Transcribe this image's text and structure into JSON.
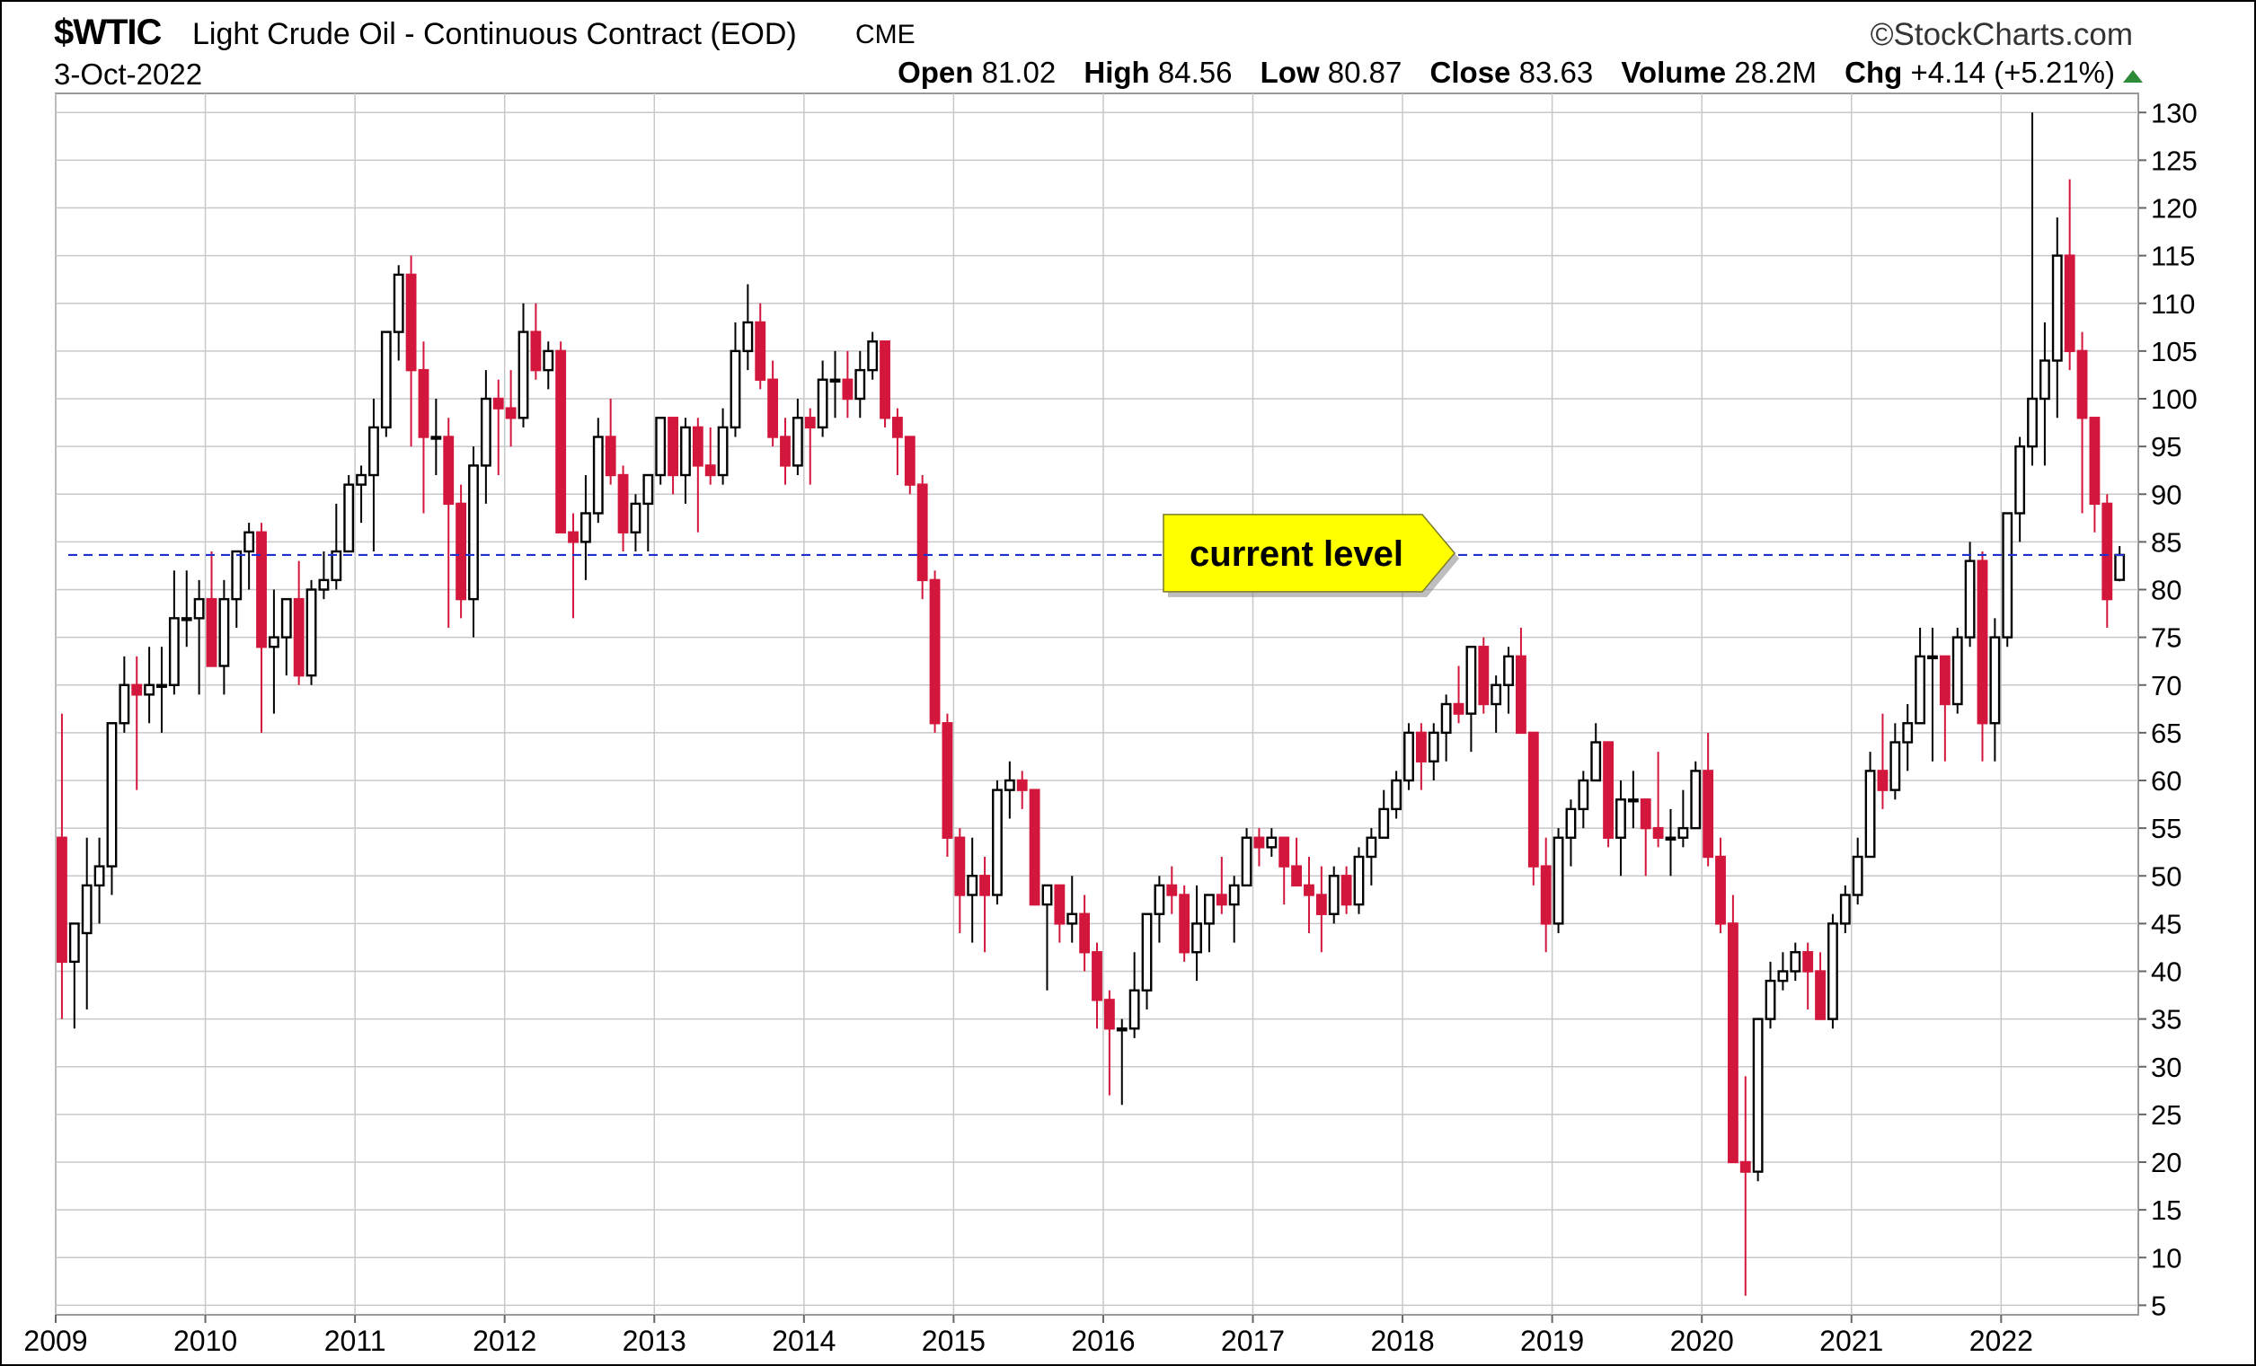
{
  "header": {
    "symbol": "$WTIC",
    "name": "Light Crude Oil - Continuous Contract (EOD)",
    "exchange": "CME",
    "date": "3-Oct-2022",
    "brand": "©StockCharts.com",
    "open_label": "Open",
    "open": "81.02",
    "high_label": "High",
    "high": "84.56",
    "low_label": "Low",
    "low": "80.87",
    "close_label": "Close",
    "close": "83.63",
    "volume_label": "Volume",
    "volume": "28.2M",
    "chg_label": "Chg",
    "chg": "+4.14 (+5.21%)"
  },
  "colors": {
    "up_fill": "#ffffff",
    "up_border": "#000000",
    "down_fill": "#d3173c",
    "grid": "#c8c8c8",
    "current_line": "#1f2fd0",
    "callout_fill": "#ffff00",
    "change_arrow": "#2e8b3a"
  },
  "chart_data": {
    "type": "candlestick",
    "frequency": "monthly",
    "xlim": [
      "2008-12",
      "2022-11"
    ],
    "ylim": [
      4,
      132
    ],
    "ytick_values": [
      5,
      10,
      15,
      20,
      25,
      30,
      35,
      40,
      45,
      50,
      55,
      60,
      65,
      70,
      75,
      80,
      85,
      90,
      95,
      100,
      105,
      110,
      115,
      120,
      125,
      130
    ],
    "xtick_labels": [
      "2009",
      "2010",
      "2011",
      "2012",
      "2013",
      "2014",
      "2015",
      "2016",
      "2017",
      "2018",
      "2019",
      "2020",
      "2021",
      "2022"
    ],
    "reference_line": {
      "value": 83.63,
      "style": "dashed",
      "label": "current level"
    },
    "candles": [
      [
        "2009-01",
        54,
        67,
        35,
        41
      ],
      [
        "2009-02",
        41,
        45,
        34,
        45
      ],
      [
        "2009-03",
        44,
        54,
        36,
        49
      ],
      [
        "2009-04",
        49,
        54,
        45,
        51
      ],
      [
        "2009-05",
        51,
        66,
        48,
        66
      ],
      [
        "2009-06",
        66,
        73,
        65,
        70
      ],
      [
        "2009-07",
        70,
        73,
        59,
        69
      ],
      [
        "2009-08",
        69,
        74,
        66,
        70
      ],
      [
        "2009-09",
        70,
        74,
        65,
        70
      ],
      [
        "2009-10",
        70,
        82,
        69,
        77
      ],
      [
        "2009-11",
        77,
        82,
        74,
        77
      ],
      [
        "2009-12",
        77,
        81,
        69,
        79
      ],
      [
        "2010-01",
        79,
        84,
        72,
        72
      ],
      [
        "2010-02",
        72,
        81,
        69,
        79
      ],
      [
        "2010-03",
        79,
        83,
        76,
        84
      ],
      [
        "2010-04",
        84,
        87,
        80,
        86
      ],
      [
        "2010-05",
        86,
        87,
        65,
        74
      ],
      [
        "2010-06",
        74,
        80,
        67,
        75
      ],
      [
        "2010-07",
        75,
        79,
        71,
        79
      ],
      [
        "2010-08",
        79,
        83,
        70,
        71
      ],
      [
        "2010-09",
        71,
        81,
        70,
        80
      ],
      [
        "2010-10",
        80,
        84,
        79,
        81
      ],
      [
        "2010-11",
        81,
        89,
        80,
        84
      ],
      [
        "2010-12",
        84,
        92,
        84,
        91
      ],
      [
        "2011-01",
        91,
        93,
        87,
        92
      ],
      [
        "2011-02",
        92,
        100,
        84,
        97
      ],
      [
        "2011-03",
        97,
        107,
        96,
        107
      ],
      [
        "2011-04",
        107,
        114,
        104,
        113
      ],
      [
        "2011-05",
        113,
        115,
        95,
        103
      ],
      [
        "2011-06",
        103,
        106,
        88,
        96
      ],
      [
        "2011-07",
        96,
        100,
        92,
        96
      ],
      [
        "2011-08",
        96,
        98,
        76,
        89
      ],
      [
        "2011-09",
        89,
        91,
        77,
        79
      ],
      [
        "2011-10",
        79,
        95,
        75,
        93
      ],
      [
        "2011-11",
        93,
        103,
        89,
        100
      ],
      [
        "2011-12",
        100,
        102,
        92,
        99
      ],
      [
        "2012-01",
        99,
        103,
        95,
        98
      ],
      [
        "2012-02",
        98,
        110,
        97,
        107
      ],
      [
        "2012-03",
        107,
        110,
        102,
        103
      ],
      [
        "2012-04",
        103,
        106,
        101,
        105
      ],
      [
        "2012-05",
        105,
        106,
        86,
        86
      ],
      [
        "2012-06",
        86,
        88,
        77,
        85
      ],
      [
        "2012-07",
        85,
        92,
        81,
        88
      ],
      [
        "2012-08",
        88,
        98,
        87,
        96
      ],
      [
        "2012-09",
        96,
        100,
        91,
        92
      ],
      [
        "2012-10",
        92,
        93,
        84,
        86
      ],
      [
        "2012-11",
        86,
        90,
        84,
        89
      ],
      [
        "2012-12",
        89,
        92,
        84,
        92
      ],
      [
        "2013-01",
        92,
        98,
        91,
        98
      ],
      [
        "2013-02",
        98,
        98,
        90,
        92
      ],
      [
        "2013-03",
        92,
        98,
        89,
        97
      ],
      [
        "2013-04",
        97,
        98,
        86,
        93
      ],
      [
        "2013-05",
        93,
        97,
        91,
        92
      ],
      [
        "2013-06",
        92,
        99,
        91,
        97
      ],
      [
        "2013-07",
        97,
        108,
        96,
        105
      ],
      [
        "2013-08",
        105,
        112,
        103,
        108
      ],
      [
        "2013-09",
        108,
        110,
        101,
        102
      ],
      [
        "2013-10",
        102,
        104,
        95,
        96
      ],
      [
        "2013-11",
        96,
        98,
        91,
        93
      ],
      [
        "2013-12",
        93,
        100,
        92,
        98
      ],
      [
        "2014-01",
        98,
        99,
        91,
        97
      ],
      [
        "2014-02",
        97,
        104,
        96,
        102
      ],
      [
        "2014-03",
        102,
        105,
        98,
        102
      ],
      [
        "2014-04",
        102,
        105,
        98,
        100
      ],
      [
        "2014-05",
        100,
        105,
        98,
        103
      ],
      [
        "2014-06",
        103,
        107,
        102,
        106
      ],
      [
        "2014-07",
        106,
        106,
        97,
        98
      ],
      [
        "2014-08",
        98,
        99,
        92,
        96
      ],
      [
        "2014-09",
        96,
        96,
        90,
        91
      ],
      [
        "2014-10",
        91,
        92,
        79,
        81
      ],
      [
        "2014-11",
        81,
        82,
        65,
        66
      ],
      [
        "2014-12",
        66,
        67,
        52,
        54
      ],
      [
        "2015-01",
        54,
        55,
        44,
        48
      ],
      [
        "2015-02",
        48,
        54,
        43,
        50
      ],
      [
        "2015-03",
        50,
        52,
        42,
        48
      ],
      [
        "2015-04",
        48,
        60,
        47,
        59
      ],
      [
        "2015-05",
        59,
        62,
        56,
        60
      ],
      [
        "2015-06",
        60,
        61,
        57,
        59
      ],
      [
        "2015-07",
        59,
        59,
        47,
        47
      ],
      [
        "2015-08",
        47,
        49,
        38,
        49
      ],
      [
        "2015-09",
        49,
        49,
        43,
        45
      ],
      [
        "2015-10",
        45,
        50,
        43,
        46
      ],
      [
        "2015-11",
        46,
        48,
        40,
        42
      ],
      [
        "2015-12",
        42,
        43,
        34,
        37
      ],
      [
        "2016-01",
        37,
        38,
        27,
        34
      ],
      [
        "2016-02",
        34,
        35,
        26,
        34
      ],
      [
        "2016-03",
        34,
        42,
        33,
        38
      ],
      [
        "2016-04",
        38,
        46,
        36,
        46
      ],
      [
        "2016-05",
        46,
        50,
        43,
        49
      ],
      [
        "2016-06",
        49,
        51,
        46,
        48
      ],
      [
        "2016-07",
        48,
        49,
        41,
        42
      ],
      [
        "2016-08",
        42,
        49,
        39,
        45
      ],
      [
        "2016-09",
        45,
        48,
        42,
        48
      ],
      [
        "2016-10",
        48,
        52,
        46,
        47
      ],
      [
        "2016-11",
        47,
        50,
        43,
        49
      ],
      [
        "2016-12",
        49,
        55,
        49,
        54
      ],
      [
        "2017-01",
        54,
        55,
        51,
        53
      ],
      [
        "2017-02",
        53,
        55,
        52,
        54
      ],
      [
        "2017-03",
        54,
        54,
        47,
        51
      ],
      [
        "2017-04",
        51,
        54,
        49,
        49
      ],
      [
        "2017-05",
        49,
        52,
        44,
        48
      ],
      [
        "2017-06",
        48,
        51,
        42,
        46
      ],
      [
        "2017-07",
        46,
        51,
        45,
        50
      ],
      [
        "2017-08",
        50,
        51,
        46,
        47
      ],
      [
        "2017-09",
        47,
        53,
        46,
        52
      ],
      [
        "2017-10",
        52,
        55,
        49,
        54
      ],
      [
        "2017-11",
        54,
        59,
        54,
        57
      ],
      [
        "2017-12",
        57,
        61,
        56,
        60
      ],
      [
        "2018-01",
        60,
        66,
        59,
        65
      ],
      [
        "2018-02",
        65,
        66,
        59,
        62
      ],
      [
        "2018-03",
        62,
        66,
        60,
        65
      ],
      [
        "2018-04",
        65,
        69,
        62,
        68
      ],
      [
        "2018-05",
        68,
        72,
        66,
        67
      ],
      [
        "2018-06",
        67,
        74,
        63,
        74
      ],
      [
        "2018-07",
        74,
        75,
        67,
        68
      ],
      [
        "2018-08",
        68,
        71,
        65,
        70
      ],
      [
        "2018-09",
        70,
        74,
        67,
        73
      ],
      [
        "2018-10",
        73,
        76,
        65,
        65
      ],
      [
        "2018-11",
        65,
        65,
        49,
        51
      ],
      [
        "2018-12",
        51,
        54,
        42,
        45
      ],
      [
        "2019-01",
        45,
        55,
        44,
        54
      ],
      [
        "2019-02",
        54,
        58,
        51,
        57
      ],
      [
        "2019-03",
        57,
        61,
        55,
        60
      ],
      [
        "2019-04",
        60,
        66,
        60,
        64
      ],
      [
        "2019-05",
        64,
        63,
        53,
        54
      ],
      [
        "2019-06",
        54,
        60,
        50,
        58
      ],
      [
        "2019-07",
        58,
        61,
        55,
        58
      ],
      [
        "2019-08",
        58,
        58,
        50,
        55
      ],
      [
        "2019-09",
        55,
        63,
        53,
        54
      ],
      [
        "2019-10",
        54,
        57,
        50,
        54
      ],
      [
        "2019-11",
        54,
        59,
        53,
        55
      ],
      [
        "2019-12",
        55,
        62,
        55,
        61
      ],
      [
        "2020-01",
        61,
        65,
        51,
        52
      ],
      [
        "2020-02",
        52,
        54,
        44,
        45
      ],
      [
        "2020-03",
        45,
        48,
        20,
        20
      ],
      [
        "2020-04",
        20,
        29,
        6,
        19
      ],
      [
        "2020-05",
        19,
        35,
        18,
        35
      ],
      [
        "2020-06",
        35,
        41,
        34,
        39
      ],
      [
        "2020-07",
        39,
        42,
        38,
        40
      ],
      [
        "2020-08",
        40,
        43,
        39,
        42
      ],
      [
        "2020-09",
        42,
        43,
        36,
        40
      ],
      [
        "2020-10",
        40,
        42,
        35,
        35
      ],
      [
        "2020-11",
        35,
        46,
        34,
        45
      ],
      [
        "2020-12",
        45,
        49,
        44,
        48
      ],
      [
        "2021-01",
        48,
        54,
        47,
        52
      ],
      [
        "2021-02",
        52,
        63,
        52,
        61
      ],
      [
        "2021-03",
        61,
        67,
        57,
        59
      ],
      [
        "2021-04",
        59,
        66,
        58,
        64
      ],
      [
        "2021-05",
        64,
        68,
        61,
        66
      ],
      [
        "2021-06",
        66,
        76,
        66,
        73
      ],
      [
        "2021-07",
        73,
        76,
        62,
        73
      ],
      [
        "2021-08",
        73,
        73,
        62,
        68
      ],
      [
        "2021-09",
        68,
        76,
        67,
        75
      ],
      [
        "2021-10",
        75,
        85,
        74,
        83
      ],
      [
        "2021-11",
        83,
        84,
        62,
        66
      ],
      [
        "2021-12",
        66,
        77,
        62,
        75
      ],
      [
        "2022-01",
        75,
        88,
        74,
        88
      ],
      [
        "2022-02",
        88,
        96,
        85,
        95
      ],
      [
        "2022-03",
        95,
        130,
        93,
        100
      ],
      [
        "2022-04",
        100,
        108,
        93,
        104
      ],
      [
        "2022-05",
        104,
        119,
        98,
        115
      ],
      [
        "2022-06",
        115,
        123,
        103,
        105
      ],
      [
        "2022-07",
        105,
        107,
        88,
        98
      ],
      [
        "2022-08",
        98,
        98,
        86,
        89
      ],
      [
        "2022-09",
        89,
        90,
        76,
        79
      ],
      [
        "2022-10",
        81.02,
        84.56,
        80.87,
        83.63
      ]
    ]
  }
}
